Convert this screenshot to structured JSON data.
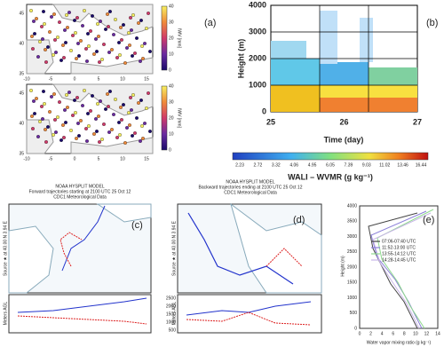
{
  "panel_a": {
    "label": "(a)",
    "lat_ticks": [
      45,
      40,
      35
    ],
    "lon_ticks": [
      -10,
      -5,
      0,
      5,
      10,
      15
    ],
    "colorbar_ticks": [
      40,
      30,
      20,
      10,
      0
    ],
    "colorbar_label": "IWV [mm]"
  },
  "panel_b": {
    "label": "(b)",
    "y_ticks": [
      4000,
      3000,
      2000,
      1000,
      0
    ],
    "y_label": "Height (m)",
    "x_ticks": [
      25,
      26,
      27
    ],
    "x_label": "Time (day)",
    "colorbar_ticks": [
      2.23,
      2.72,
      3.32,
      4.06,
      4.95,
      6.05,
      7.39,
      9.03,
      11.02,
      13.46,
      16.44
    ],
    "colorbar_label": "WALI – WVMR (g kg⁻¹)"
  },
  "panel_c": {
    "label": "(c)",
    "title": "NOAA HYSPLIT MODEL",
    "subtitle": "Forward trajectories starting at 2100 UTC 25 Oct 12",
    "data_note": "CDC1 Meteorological Data",
    "source": "Source ★ at 40.00 N 3.94 E",
    "y_label": "Meters AGL"
  },
  "panel_d": {
    "label": "(d)",
    "title": "NOAA HYSPLIT MODEL",
    "subtitle": "Backward trajectories ending at 2100 UTC 25 Oct 12",
    "data_note": "CDC1 Meteorological Data",
    "source": "Source ★ at 40.00 N 3.94 E",
    "y_label": "Meters AGL",
    "height_ticks": [
      2500,
      2000,
      1500,
      1000,
      500
    ]
  },
  "panel_e": {
    "label": "(e)",
    "y_ticks": [
      4000,
      3500,
      3000,
      2500,
      2000,
      1500,
      1000,
      500,
      0
    ],
    "y_label": "Height (m)",
    "x_ticks": [
      0,
      2,
      4,
      6,
      8,
      10,
      12,
      14
    ],
    "x_label": "Water vapor mixing ratio (g kg⁻¹)",
    "legend": [
      {
        "name": "07:06-07:40 UTC",
        "color": "#444444"
      },
      {
        "name": "11:52-13:00 UTC",
        "color": "#8a7fd8"
      },
      {
        "name": "13:55-14:12 UTC",
        "color": "#8fd98f"
      },
      {
        "name": "14:28-14:45 UTC",
        "color": "#c9b6e8"
      }
    ]
  }
}
